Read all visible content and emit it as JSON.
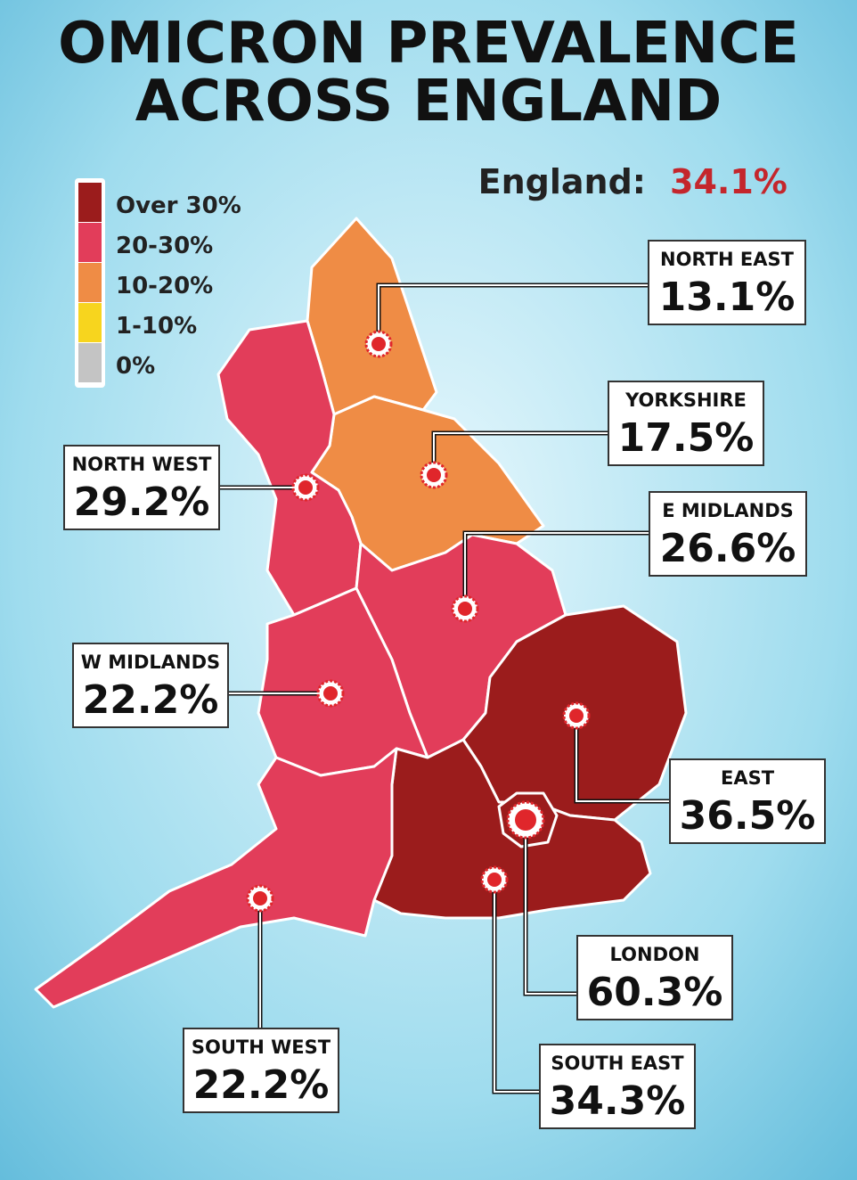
{
  "title": [
    "OMICRON PREVALENCE",
    "ACROSS ENGLAND"
  ],
  "national": {
    "label": "England:",
    "value": "34.1%"
  },
  "legend": [
    {
      "label": "Over 30%",
      "color": "#9b1c1c"
    },
    {
      "label": "20-30%",
      "color": "#e23d5a"
    },
    {
      "label": "10-20%",
      "color": "#ef8c45"
    },
    {
      "label": "1-10%",
      "color": "#f7d51e"
    },
    {
      "label": "0%",
      "color": "#c4c4c4"
    }
  ],
  "regions": [
    {
      "name": "NORTH EAST",
      "value": "13.1%",
      "color": "#ef8c45"
    },
    {
      "name": "YORKSHIRE",
      "value": "17.5%",
      "color": "#ef8c45"
    },
    {
      "name": "NORTH WEST",
      "value": "29.2%",
      "color": "#e23d5a"
    },
    {
      "name": "E MIDLANDS",
      "value": "26.6%",
      "color": "#e23d5a"
    },
    {
      "name": "W MIDLANDS",
      "value": "22.2%",
      "color": "#e23d5a"
    },
    {
      "name": "EAST",
      "value": "36.5%",
      "color": "#9b1c1c"
    },
    {
      "name": "LONDON",
      "value": "60.3%",
      "color": "#9b1c1c"
    },
    {
      "name": "SOUTH EAST",
      "value": "34.3%",
      "color": "#9b1c1c"
    },
    {
      "name": "SOUTH WEST",
      "value": "22.2%",
      "color": "#e23d5a"
    }
  ]
}
